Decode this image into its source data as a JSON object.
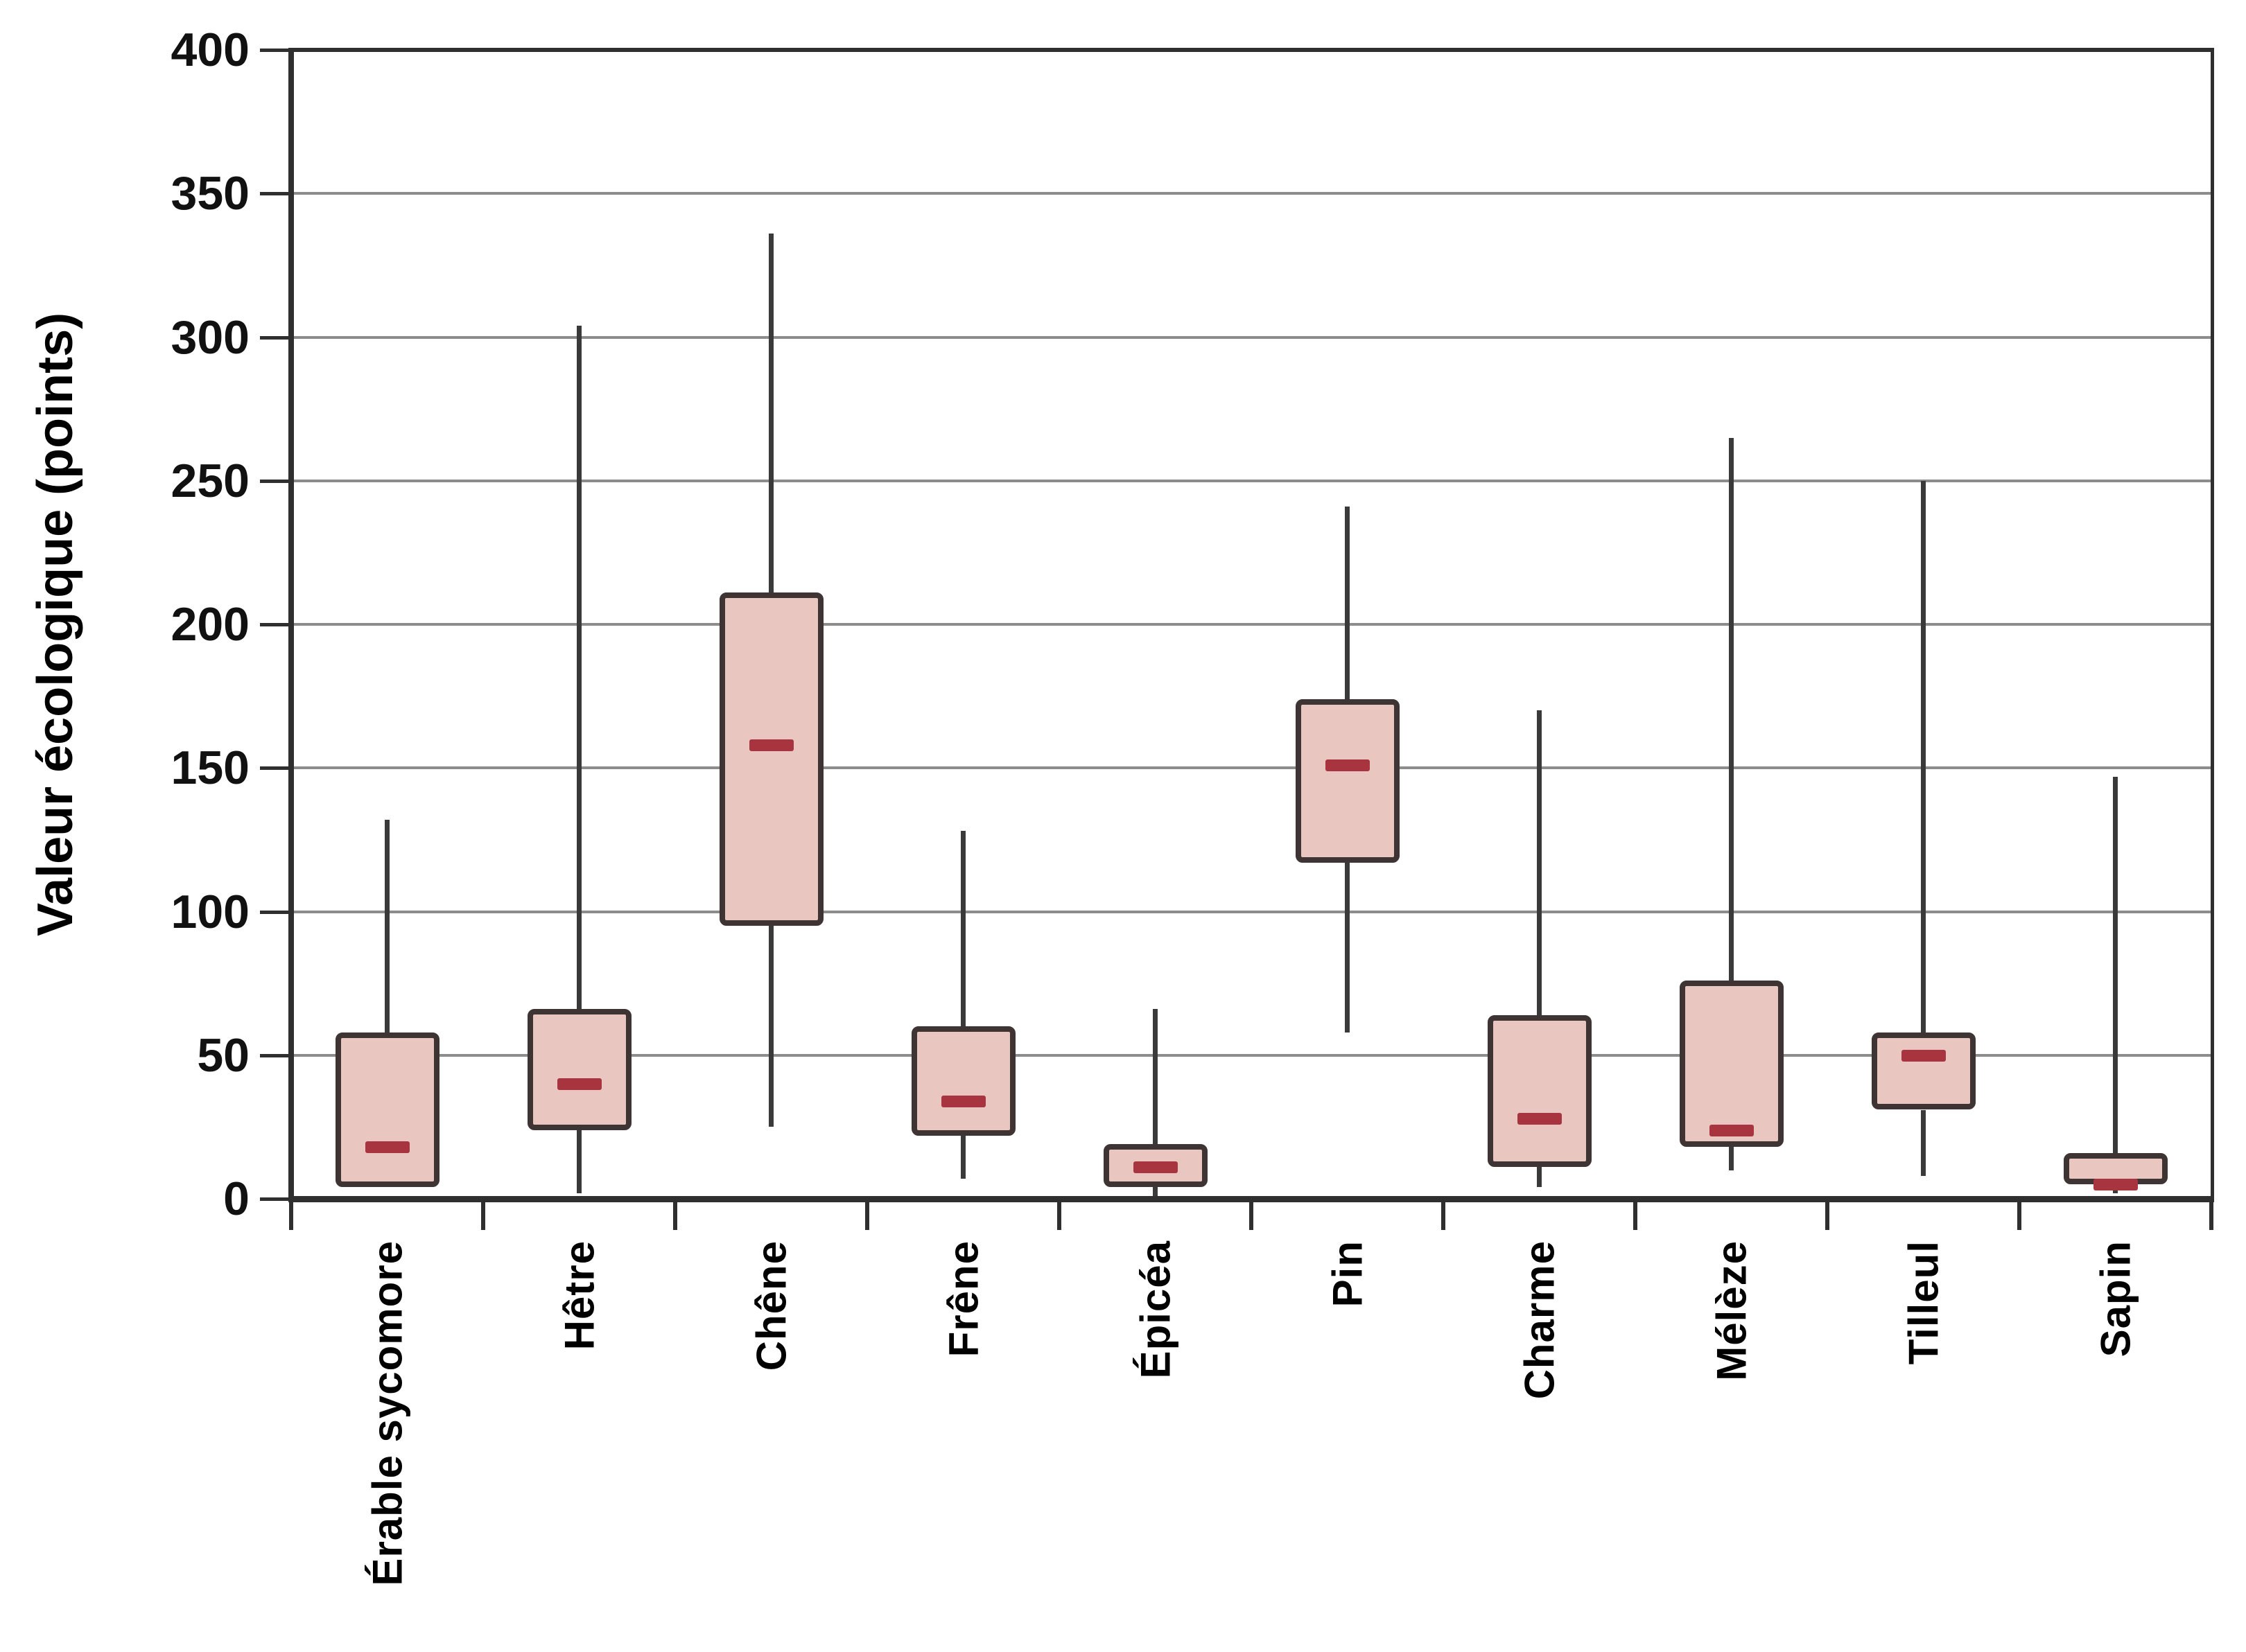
{
  "chart_data": {
    "type": "box",
    "title": "",
    "ylabel": "Valeur écologique (points)",
    "xlabel": "",
    "ylim": [
      0,
      400
    ],
    "ytick_step": 50,
    "ytick_values": [
      0,
      50,
      100,
      150,
      200,
      250,
      300,
      350,
      400
    ],
    "grid": true,
    "legend": "none",
    "categories": [
      "Érable sycomore",
      "Hêtre",
      "Chêne",
      "Frêne",
      "Épicéa",
      "Pin",
      "Charme",
      "Mélèze",
      "Tilleul",
      "Sapin"
    ],
    "series": [
      {
        "name": "Érable sycomore",
        "min": 4,
        "q1": 4,
        "median": 18,
        "q3": 58,
        "max": 132
      },
      {
        "name": "Hêtre",
        "min": 2,
        "q1": 24,
        "median": 40,
        "q3": 66,
        "max": 304
      },
      {
        "name": "Chêne",
        "min": 25,
        "q1": 95,
        "median": 158,
        "q3": 211,
        "max": 336
      },
      {
        "name": "Frêne",
        "min": 7,
        "q1": 22,
        "median": 34,
        "q3": 60,
        "max": 128
      },
      {
        "name": "Épicéa",
        "min": 1,
        "q1": 4,
        "median": 11,
        "q3": 19,
        "max": 66
      },
      {
        "name": "Pin",
        "min": 58,
        "q1": 117,
        "median": 151,
        "q3": 174,
        "max": 241
      },
      {
        "name": "Charme",
        "min": 4,
        "q1": 11,
        "median": 28,
        "q3": 64,
        "max": 170
      },
      {
        "name": "Mélèze",
        "min": 10,
        "q1": 18,
        "median": 24,
        "q3": 76,
        "max": 265
      },
      {
        "name": "Tilleul",
        "min": 8,
        "q1": 31,
        "median": 50,
        "q3": 58,
        "max": 250
      },
      {
        "name": "Sapin",
        "min": 2,
        "q1": 5,
        "median": 5,
        "q3": 16,
        "max": 147
      }
    ],
    "colors": {
      "box_fill": "#e9c7c0",
      "box_border": "#3e3434",
      "median": "#a83440",
      "grid": "#8c8c8c",
      "axis": "#2f2f2f",
      "text": "#000000"
    }
  }
}
